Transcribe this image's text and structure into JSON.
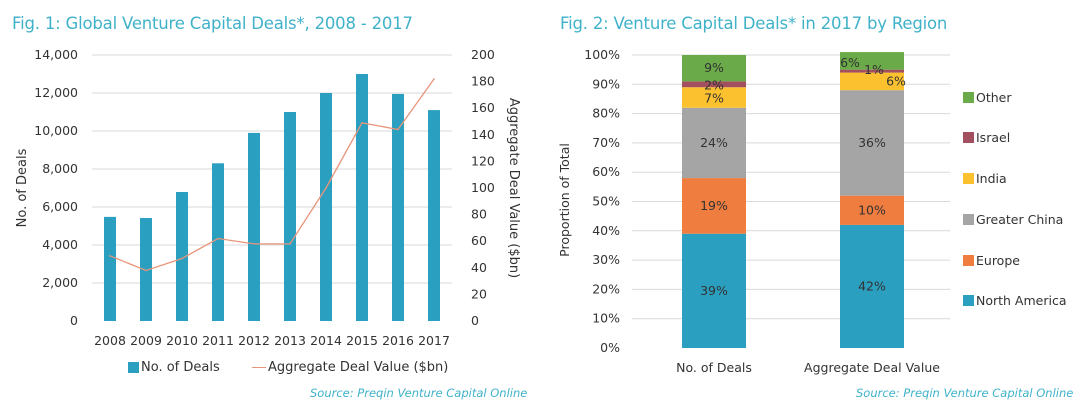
{
  "figures": {
    "fig1": {
      "title": "Fig. 1: Global Venture Capital Deals*, 2008 - 2017",
      "source": "Source: Preqin Venture Capital Online",
      "legend": [
        "No. of Deals",
        "Aggregate Deal Value ($bn)"
      ]
    },
    "fig2": {
      "title": "Fig. 2: Venture Capital Deals* in 2017 by Region",
      "source": "Source: Preqin Venture Capital Online",
      "legend": [
        "Other",
        "Israel",
        "India",
        "Greater China",
        "Europe",
        "North America"
      ]
    }
  },
  "colors": {
    "bar": "#2a9fc0",
    "line": "#e8957a",
    "title": "#3fb2c9",
    "grid": "#d9d9d9",
    "North America": "#2a9fc0",
    "Europe": "#ee7d3f",
    "Greater China": "#a5a5a5",
    "India": "#fcc12f",
    "Israel": "#a2505f",
    "Other": "#6aaa48"
  },
  "chart_data": [
    {
      "type": "bar",
      "title": "Fig. 1: Global Venture Capital Deals*, 2008 - 2017",
      "categories": [
        "2008",
        "2009",
        "2010",
        "2011",
        "2012",
        "2013",
        "2014",
        "2015",
        "2016",
        "2017"
      ],
      "series": [
        {
          "name": "No. of Deals",
          "type": "bar",
          "axis": "left",
          "values": [
            5480,
            5420,
            6790,
            8300,
            9900,
            11000,
            12000,
            13000,
            11950,
            11100
          ]
        },
        {
          "name": "Aggregate Deal Value ($bn)",
          "type": "line",
          "axis": "right",
          "values": [
            49,
            38,
            47,
            62,
            58,
            58,
            100,
            149,
            144,
            182
          ]
        }
      ],
      "xlabel": "",
      "ylabel": "No. of Deals",
      "y2label": "Aggregate Deal Value ($bn)",
      "ylim": [
        0,
        14000
      ],
      "yticks": [
        "0",
        "2,000",
        "4,000",
        "6,000",
        "8,000",
        "10,000",
        "12,000",
        "14,000"
      ],
      "ytick_values": [
        0,
        2000,
        4000,
        6000,
        8000,
        10000,
        12000,
        14000
      ],
      "y2lim": [
        0,
        200
      ],
      "y2ticks": [
        "0",
        "20",
        "40",
        "60",
        "80",
        "100",
        "120",
        "140",
        "160",
        "180",
        "200"
      ],
      "y2tick_values": [
        0,
        20,
        40,
        60,
        80,
        100,
        120,
        140,
        160,
        180,
        200
      ],
      "grid": true,
      "legend": "bottom"
    },
    {
      "type": "bar",
      "stacked": true,
      "title": "Fig. 2: Venture Capital Deals* in 2017 by Region",
      "categories": [
        "No. of Deals",
        "Aggregate Deal Value"
      ],
      "series": [
        {
          "name": "North America",
          "values": [
            39,
            42
          ],
          "labels": [
            "39%",
            "42%"
          ]
        },
        {
          "name": "Europe",
          "values": [
            19,
            10
          ],
          "labels": [
            "19%",
            "10%"
          ]
        },
        {
          "name": "Greater China",
          "values": [
            24,
            36
          ],
          "labels": [
            "24%",
            "36%"
          ]
        },
        {
          "name": "India",
          "values": [
            7,
            6
          ],
          "labels": [
            "7%",
            "6%"
          ]
        },
        {
          "name": "Israel",
          "values": [
            2,
            1
          ],
          "labels": [
            "2%",
            "1%"
          ]
        },
        {
          "name": "Other",
          "values": [
            9,
            6
          ],
          "labels": [
            "9%",
            "6%"
          ]
        }
      ],
      "ylabel": "Proportion of Total",
      "ylim": [
        0,
        100
      ],
      "yticks": [
        "0%",
        "10%",
        "20%",
        "30%",
        "40%",
        "50%",
        "60%",
        "70%",
        "80%",
        "90%",
        "100%"
      ],
      "ytick_values": [
        0,
        10,
        20,
        30,
        40,
        50,
        60,
        70,
        80,
        90,
        100
      ],
      "grid": true,
      "legend": "right"
    }
  ]
}
